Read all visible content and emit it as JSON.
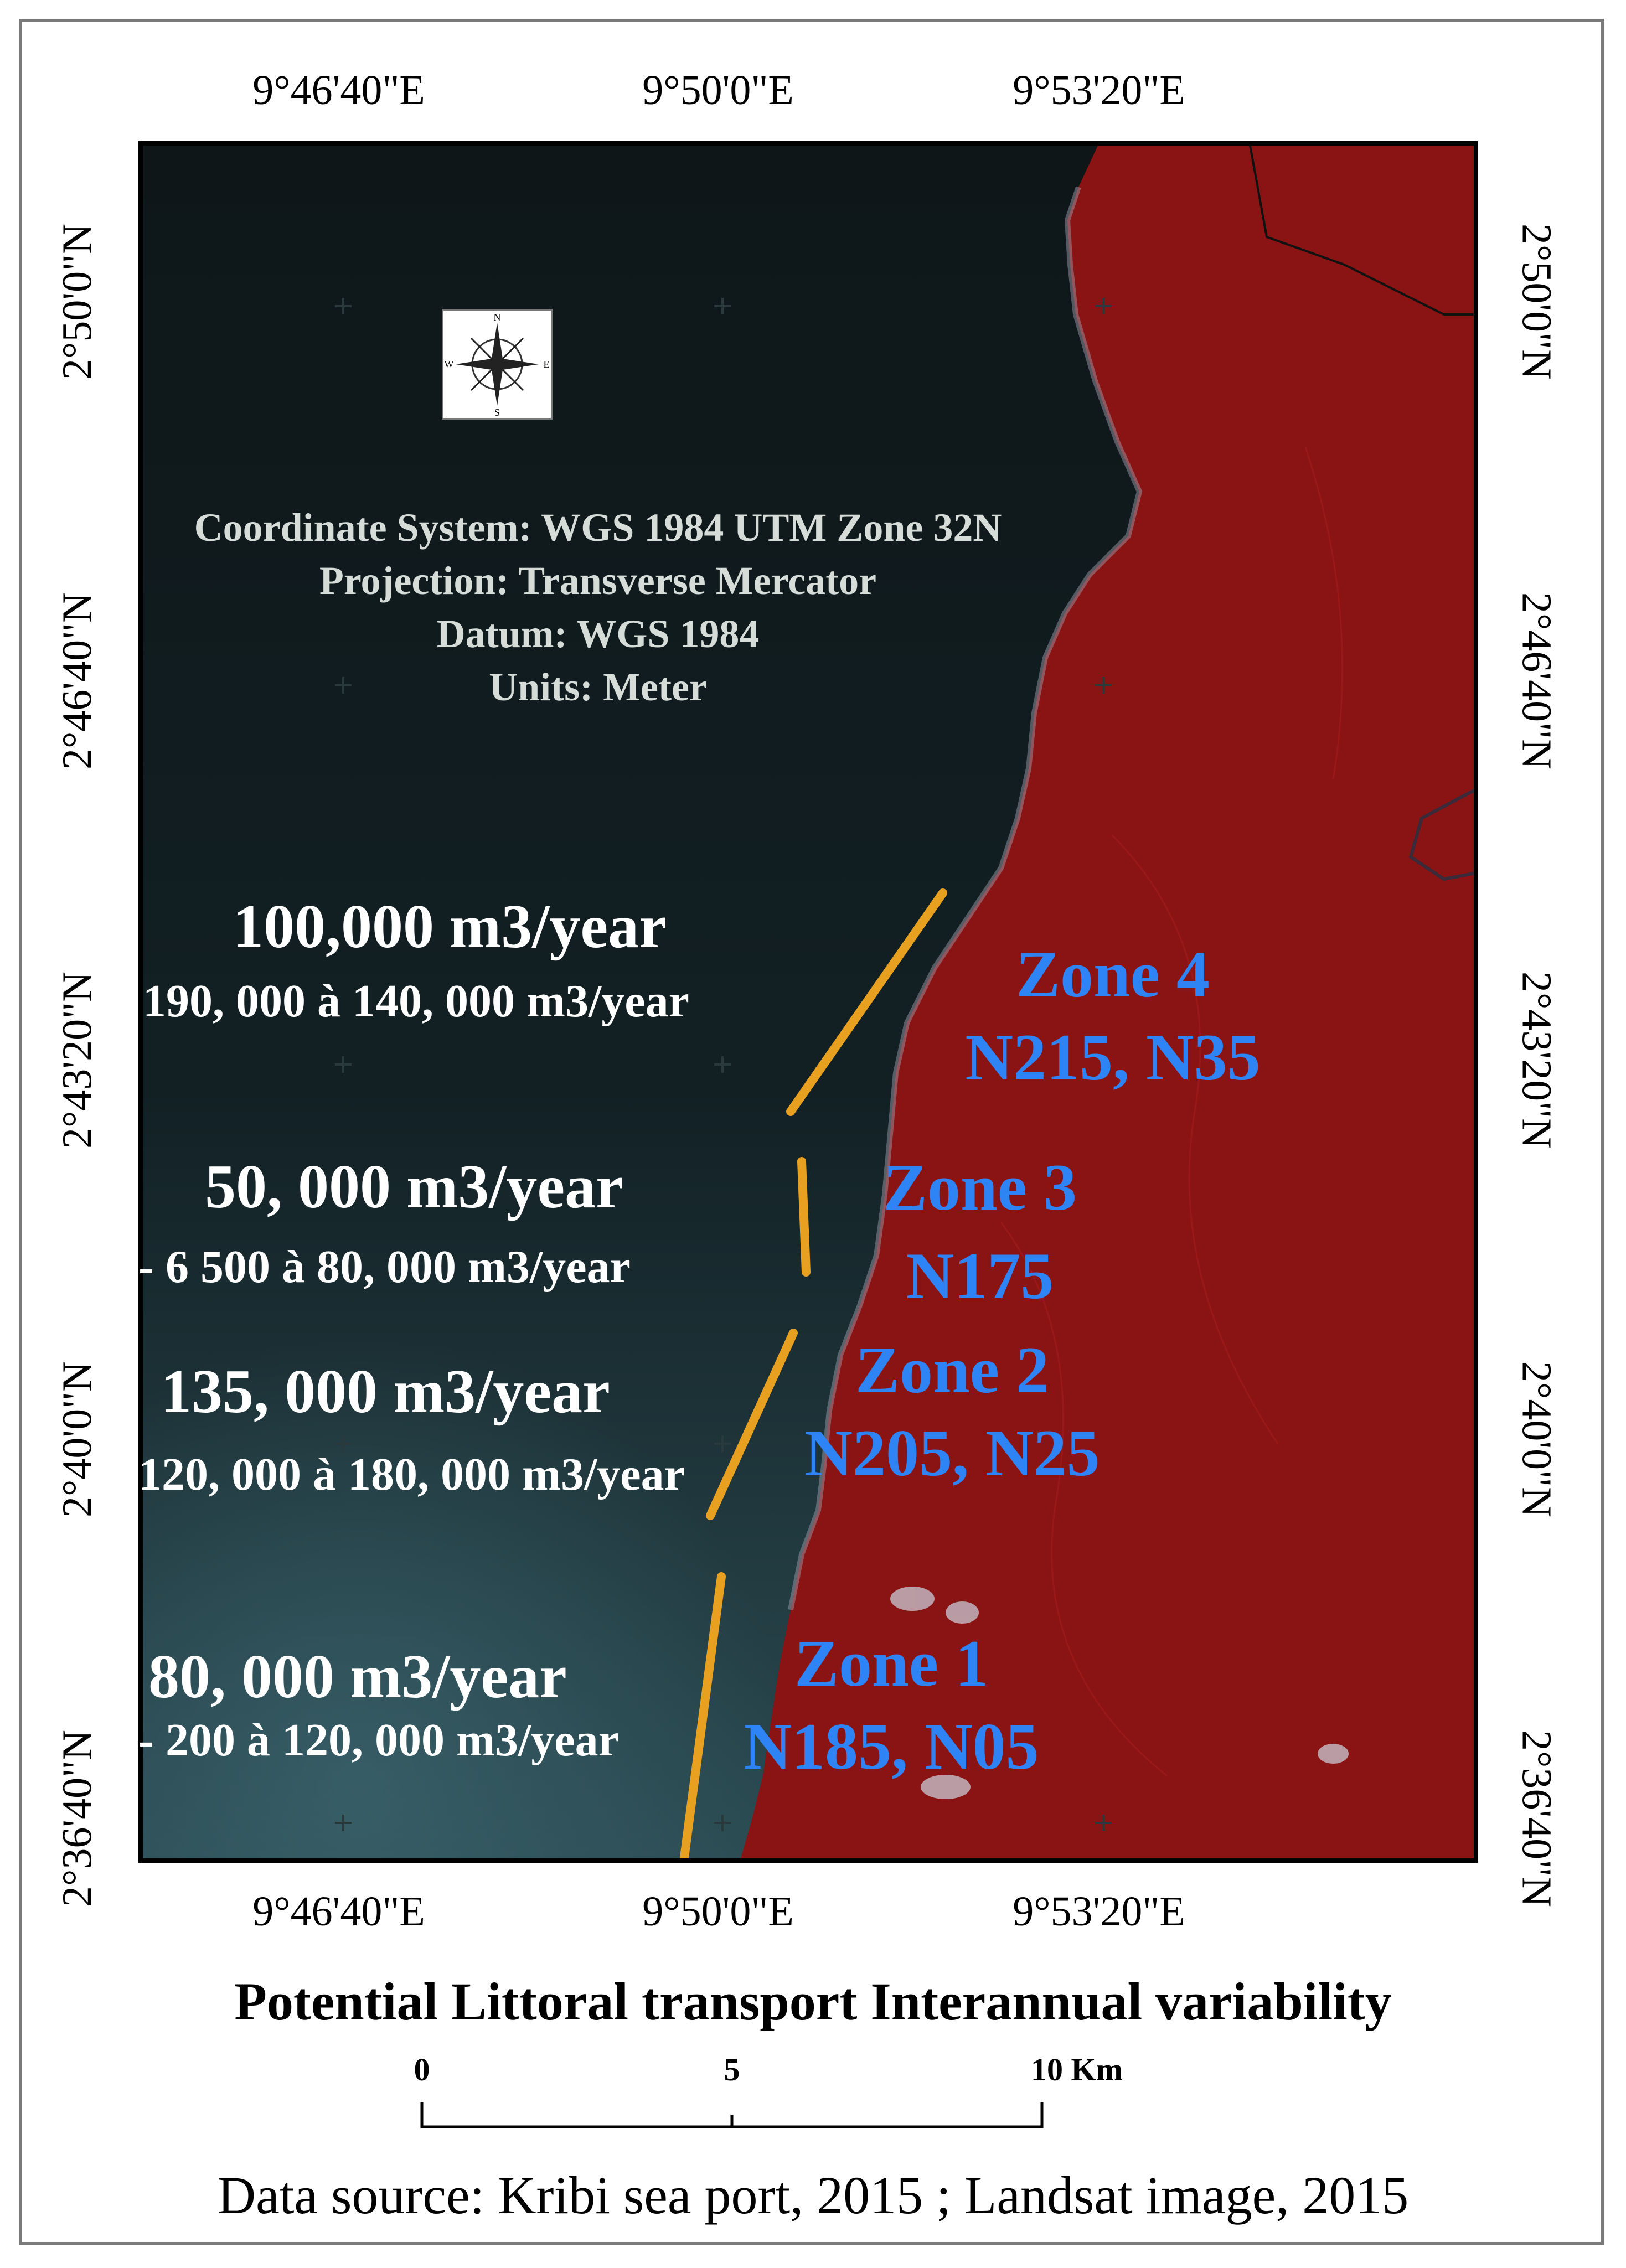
{
  "ticks": {
    "longitude": [
      "9°46'40\"E",
      "9°50'0\"E",
      "9°53'20\"E"
    ],
    "latitude": [
      "2°50'0\"N",
      "2°46'40\"N",
      "2°43'20\"N",
      "2°40'0\"N",
      "2°36'40\"N"
    ]
  },
  "coordinate_info": [
    "Coordinate System: WGS 1984 UTM Zone 32N",
    "Projection: Transverse Mercator",
    "Datum: WGS 1984",
    "Units: Meter"
  ],
  "compass": {
    "n": "N",
    "s": "S",
    "e": "E",
    "w": "W"
  },
  "transport": [
    {
      "main": "100,000 m3/year",
      "range": "190, 000 à 140, 000 m3/year"
    },
    {
      "main": "50, 000 m3/year",
      "range": "- 6 500 à 80, 000 m3/year"
    },
    {
      "main": "135, 000 m3/year",
      "range": "120, 000 à 180, 000 m3/year"
    },
    {
      "main": "80, 000 m3/year",
      "range": "- 200 à 120, 000 m3/year"
    }
  ],
  "zones": [
    {
      "name": "Zone 4",
      "orientation": "N215, N35"
    },
    {
      "name": "Zone 3",
      "orientation": "N175"
    },
    {
      "name": "Zone 2",
      "orientation": "N205, N25"
    },
    {
      "name": "Zone 1",
      "orientation": "N185, N05"
    }
  ],
  "title": "Potential Littoral transport Interannual variability",
  "scale_bar": {
    "labels": [
      "0",
      "5",
      "10 Km"
    ]
  },
  "source": "Data source: Kribi sea port, 2015 ; Landsat image, 2015",
  "colors": {
    "sea": "#10191b",
    "land": "#8a1414",
    "zone_text": "#2e84f5",
    "segment": "#e8a020"
  }
}
